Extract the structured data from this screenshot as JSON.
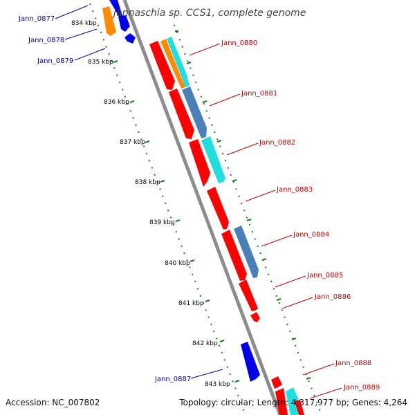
{
  "title": "Jannaschia sp. CCS1, complete genome",
  "footer": {
    "accession": "Accession: NC_007802",
    "topology": "Topology: circular; Length: 4,317,977 bp; Genes: 4,264"
  },
  "colors": {
    "backbone": "#8c8c8c",
    "tick_dots": "#1a7a1a",
    "label_reverse": "#0000aa",
    "label_forward": "#cc0000",
    "red": "#ff0000",
    "orange": "#ff8c00",
    "cyan": "#22dddd",
    "steel": "#4a7fb8",
    "blue": "#0000ee"
  },
  "scale": {
    "ticks": [
      "834 kbp",
      "835 kbp",
      "836 kbp",
      "837 kbp",
      "838 kbp",
      "839 kbp",
      "840 kbp",
      "841 kbp",
      "842 kbp",
      "843 kbp"
    ]
  },
  "labels": {
    "left": [
      "Jann_0877",
      "Jann_0878",
      "Jann_0879",
      "Jann_0887"
    ],
    "right": [
      "Jann_0880",
      "Jann_0881",
      "Jann_0882",
      "Jann_0883",
      "Jann_0884",
      "Jann_0885",
      "Jann_0886",
      "Jann_0888",
      "Jann_0889"
    ]
  }
}
